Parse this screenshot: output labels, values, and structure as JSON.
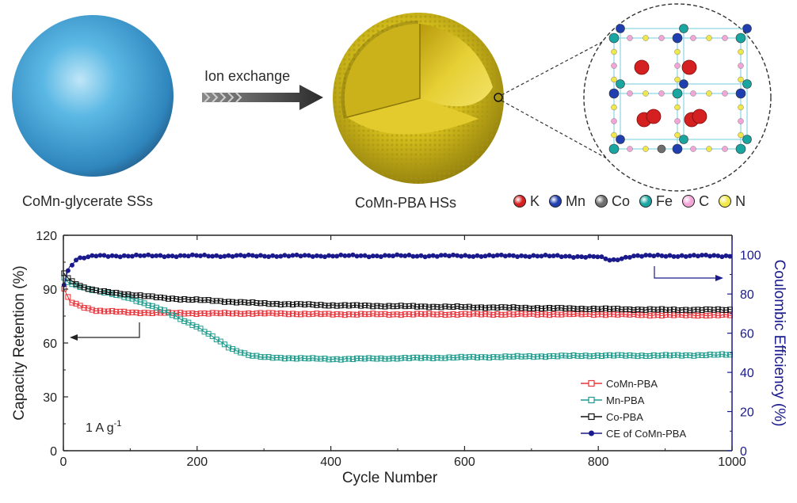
{
  "top": {
    "arrow_label": "Ion exchange",
    "left_caption": "CoMn-glycerate SSs",
    "middle_caption": "CoMn-PBA HSs",
    "element_legend": [
      {
        "symbol": "K",
        "color": "#d42020"
      },
      {
        "symbol": "Mn",
        "color": "#1f3fb0"
      },
      {
        "symbol": "Co",
        "color": "#6e6e6e"
      },
      {
        "symbol": "Fe",
        "color": "#1aa6a0"
      },
      {
        "symbol": "C",
        "color": "#f2a6d8"
      },
      {
        "symbol": "N",
        "color": "#f0e84a"
      }
    ],
    "colors": {
      "sphere": "#3ea3d6",
      "shell": "#d8c21a",
      "shell_inner": "#c6a812"
    }
  },
  "chart_data": {
    "type": "line",
    "xlabel": "Cycle Number",
    "ylabel": "Capacity Retention (%)",
    "y2label": "Coulombic Efficiency (%)",
    "xlim": [
      0,
      1000
    ],
    "ylim": [
      0,
      120
    ],
    "y2lim": [
      0,
      110
    ],
    "xticks": [
      0,
      200,
      400,
      600,
      800,
      1000
    ],
    "yticks": [
      0,
      30,
      60,
      90,
      120
    ],
    "y2ticks": [
      0,
      20,
      40,
      60,
      80,
      100
    ],
    "annotation": "1 A g",
    "annotation_sup": "-1",
    "grid": false,
    "legend_position": "bottom-right",
    "series": [
      {
        "name": "CoMn-PBA",
        "axis": "left",
        "color": "#e8333a",
        "marker": "open-square",
        "x": [
          1,
          10,
          30,
          50,
          100,
          200,
          300,
          400,
          500,
          600,
          700,
          800,
          900,
          1000
        ],
        "y": [
          90,
          83,
          80,
          78,
          77,
          76.5,
          76.5,
          76,
          76,
          76,
          76,
          76,
          75.5,
          75.5
        ]
      },
      {
        "name": "Mn-PBA",
        "axis": "left",
        "color": "#1e9c8e",
        "marker": "open-square",
        "x": [
          1,
          10,
          30,
          50,
          100,
          150,
          200,
          250,
          280,
          300,
          400,
          500,
          600,
          700,
          800,
          900,
          1000
        ],
        "y": [
          96,
          93,
          91,
          89,
          85,
          78,
          69,
          57,
          53,
          52,
          51,
          51.5,
          52,
          52.5,
          53,
          53,
          53.5
        ]
      },
      {
        "name": "Co-PBA",
        "axis": "left",
        "color": "#111111",
        "marker": "open-square",
        "x": [
          1,
          10,
          30,
          50,
          100,
          150,
          200,
          300,
          400,
          500,
          600,
          700,
          800,
          900,
          1000
        ],
        "y": [
          99,
          95,
          91,
          89,
          87,
          85,
          84,
          82,
          81,
          80.5,
          80,
          79.5,
          79,
          78.5,
          78.5
        ]
      },
      {
        "name": "CE of CoMn-PBA",
        "axis": "right",
        "color": "#1a1a8c",
        "marker": "filled-circle",
        "x": [
          1,
          8,
          20,
          50,
          100,
          200,
          300,
          400,
          500,
          600,
          700,
          800,
          820,
          850,
          900,
          1000
        ],
        "y": [
          85,
          93,
          98,
          99.5,
          99.5,
          99.5,
          99.5,
          99.5,
          99.5,
          99.5,
          99.5,
          99,
          97,
          99.5,
          99.5,
          99.5
        ]
      }
    ]
  }
}
